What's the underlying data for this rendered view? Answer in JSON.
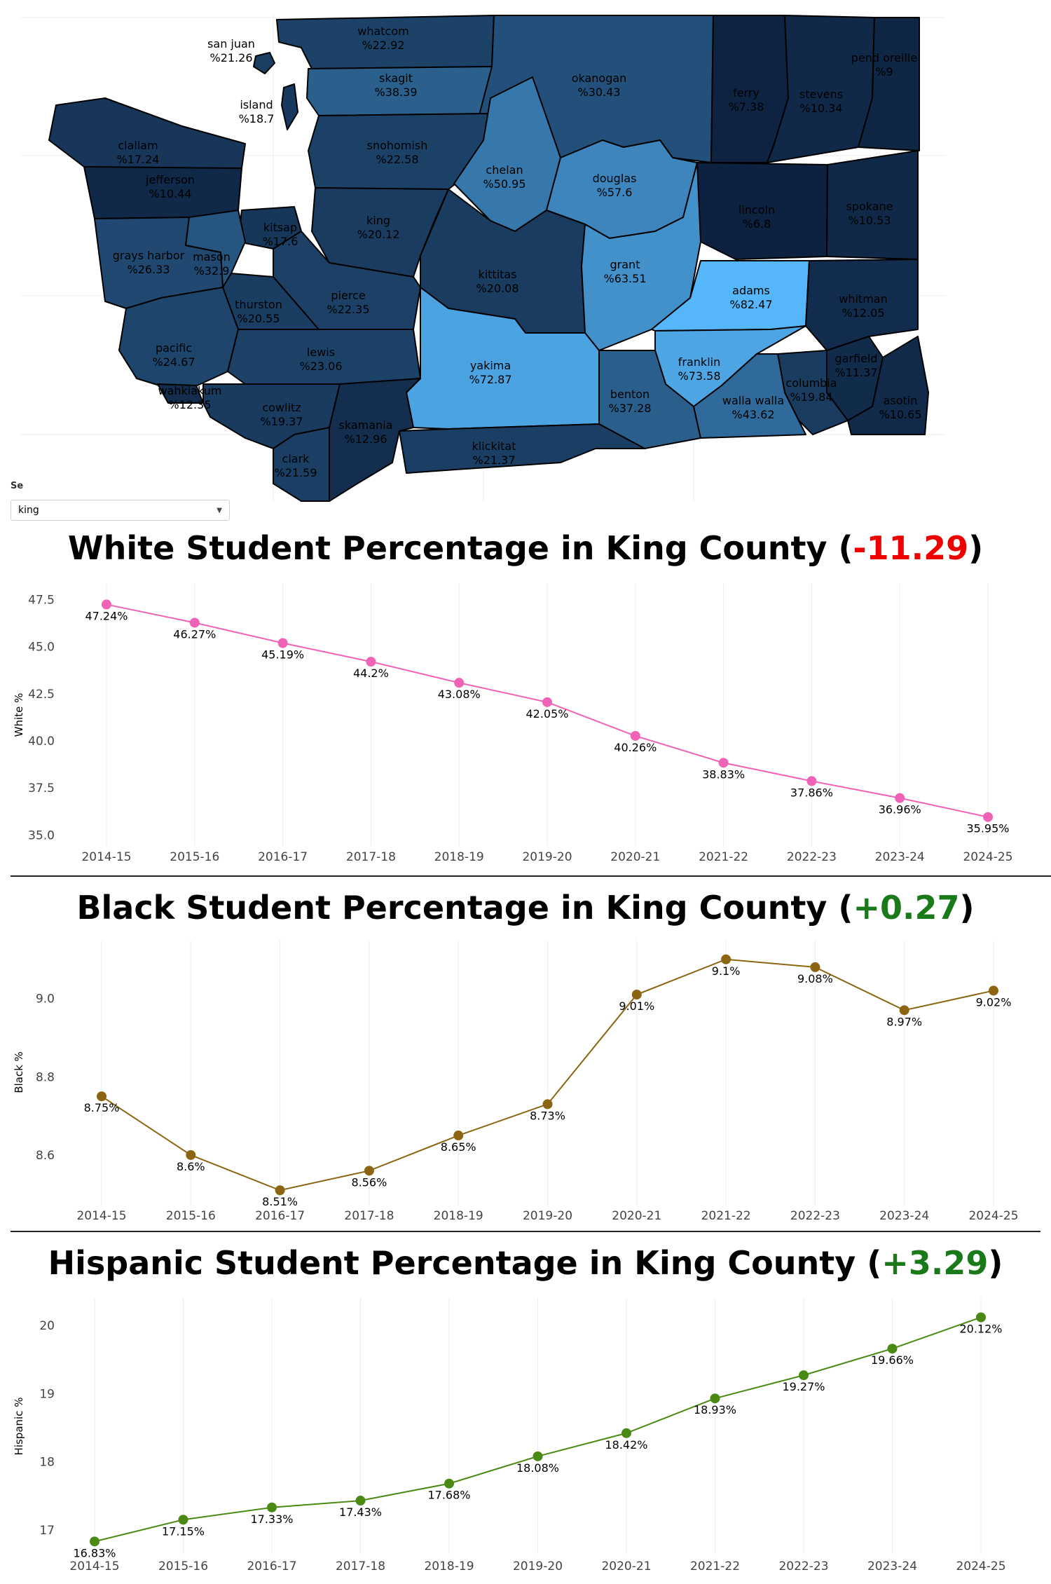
{
  "map": {
    "select_label": "Se",
    "selected_county": "king",
    "dropdown_icon": "caret-down-icon",
    "colors": {
      "low": "#0d2240",
      "high": "#55b6f9",
      "border": "#000000"
    },
    "counties": [
      {
        "name": "san juan",
        "value": "%21.26"
      },
      {
        "name": "whatcom",
        "value": "%22.92"
      },
      {
        "name": "island",
        "value": "%18.7"
      },
      {
        "name": "skagit",
        "value": "%38.39"
      },
      {
        "name": "okanogan",
        "value": "%30.43"
      },
      {
        "name": "ferry",
        "value": "%7.38"
      },
      {
        "name": "stevens",
        "value": "%10.34"
      },
      {
        "name": "pend oreille",
        "value": "%9"
      },
      {
        "name": "clallam",
        "value": "%17.24"
      },
      {
        "name": "snohomish",
        "value": "%22.58"
      },
      {
        "name": "chelan",
        "value": "%50.95"
      },
      {
        "name": "douglas",
        "value": "%57.6"
      },
      {
        "name": "jefferson",
        "value": "%10.44"
      },
      {
        "name": "kitsap",
        "value": "%17.6"
      },
      {
        "name": "king",
        "value": "%20.12"
      },
      {
        "name": "lincoln",
        "value": "%6.8"
      },
      {
        "name": "spokane",
        "value": "%10.53"
      },
      {
        "name": "grays harbor",
        "value": "%26.33"
      },
      {
        "name": "mason",
        "value": "%32.9"
      },
      {
        "name": "kittitas",
        "value": "%20.08"
      },
      {
        "name": "grant",
        "value": "%63.51"
      },
      {
        "name": "adams",
        "value": "%82.47"
      },
      {
        "name": "thurston",
        "value": "%20.55"
      },
      {
        "name": "pierce",
        "value": "%22.35"
      },
      {
        "name": "whitman",
        "value": "%12.05"
      },
      {
        "name": "pacific",
        "value": "%24.67"
      },
      {
        "name": "lewis",
        "value": "%23.06"
      },
      {
        "name": "yakima",
        "value": "%72.87"
      },
      {
        "name": "franklin",
        "value": "%73.58"
      },
      {
        "name": "garfield",
        "value": "%11.37"
      },
      {
        "name": "wahkiakum",
        "value": "%12.35"
      },
      {
        "name": "columbia",
        "value": "%19.84"
      },
      {
        "name": "benton",
        "value": "%37.28"
      },
      {
        "name": "walla walla",
        "value": "%43.62"
      },
      {
        "name": "cowlitz",
        "value": "%19.37"
      },
      {
        "name": "skamania",
        "value": "%12.96"
      },
      {
        "name": "asotin",
        "value": "%10.65"
      },
      {
        "name": "klickitat",
        "value": "%21.37"
      },
      {
        "name": "clark",
        "value": "%21.59"
      }
    ]
  },
  "chart_data": [
    {
      "type": "line",
      "title_main": "White Student Percentage in King County (",
      "title_change": "-11.29",
      "title_end": ")",
      "change_color": "#ee0000",
      "ylabel": "White %",
      "color": "#f062b5",
      "ylim": [
        34.6,
        48.0
      ],
      "yticks": [
        35.0,
        37.5,
        40.0,
        42.5,
        45.0,
        47.5
      ],
      "ytick_labels": [
        "35.0",
        "37.5",
        "40.0",
        "42.5",
        "45.0",
        "47.5"
      ],
      "categories": [
        "2014-15",
        "2015-16",
        "2016-17",
        "2017-18",
        "2018-19",
        "2019-20",
        "2020-21",
        "2021-22",
        "2022-23",
        "2023-24",
        "2024-25"
      ],
      "values": [
        47.24,
        46.27,
        45.19,
        44.2,
        43.08,
        42.05,
        40.26,
        38.83,
        37.86,
        36.96,
        35.95
      ],
      "labels": [
        "47.24%",
        "46.27%",
        "45.19%",
        "44.2%",
        "43.08%",
        "42.05%",
        "40.26%",
        "38.83%",
        "37.86%",
        "36.96%",
        "35.95%"
      ]
    },
    {
      "type": "line",
      "title_main": "Black Student Percentage in King County (",
      "title_change": "+0.27",
      "title_end": ")",
      "change_color": "#1a7a1a",
      "ylabel": "Black %",
      "color": "#8b6512",
      "ylim": [
        8.48,
        9.13
      ],
      "yticks": [
        8.6,
        8.8,
        9.0
      ],
      "ytick_labels": [
        "8.6",
        "8.8",
        "9.0"
      ],
      "categories": [
        "2014-15",
        "2015-16",
        "2016-17",
        "2017-18",
        "2018-19",
        "2019-20",
        "2020-21",
        "2021-22",
        "2022-23",
        "2023-24",
        "2024-25"
      ],
      "values": [
        8.75,
        8.6,
        8.51,
        8.56,
        8.65,
        8.73,
        9.01,
        9.1,
        9.08,
        8.97,
        9.02
      ],
      "labels": [
        "8.75%",
        "8.6%",
        "8.51%",
        "8.56%",
        "8.65%",
        "8.73%",
        "9.01%",
        "9.1%",
        "9.08%",
        "8.97%",
        "9.02%"
      ]
    },
    {
      "type": "line",
      "title_main": "Hispanic Student Percentage in King County (",
      "title_change": "+3.29",
      "title_end": ")",
      "change_color": "#1a7a1a",
      "ylabel": "Hispanic %",
      "color": "#4a8a14",
      "ylim": [
        16.7,
        20.3
      ],
      "yticks": [
        17,
        18,
        19,
        20
      ],
      "ytick_labels": [
        "17",
        "18",
        "19",
        "20"
      ],
      "categories": [
        "2014-15",
        "2015-16",
        "2016-17",
        "2017-18",
        "2018-19",
        "2019-20",
        "2020-21",
        "2021-22",
        "2022-23",
        "2023-24",
        "2024-25"
      ],
      "values": [
        16.83,
        17.15,
        17.33,
        17.43,
        17.68,
        18.08,
        18.42,
        18.93,
        19.27,
        19.66,
        20.12
      ],
      "labels": [
        "16.83%",
        "17.15%",
        "17.33%",
        "17.43%",
        "17.68%",
        "18.08%",
        "18.42%",
        "18.93%",
        "19.27%",
        "19.66%",
        "20.12%"
      ]
    }
  ]
}
